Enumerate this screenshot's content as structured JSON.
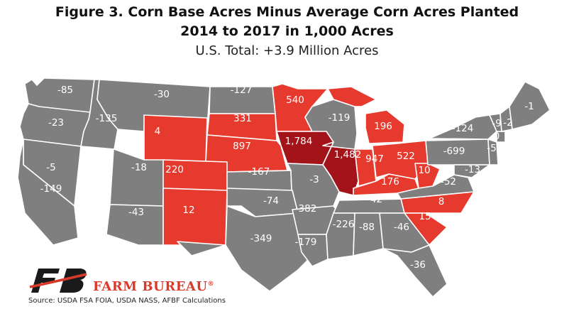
{
  "header": {
    "title_line1": "Figure 3. Corn Base Acres Minus Average Corn Acres Planted",
    "title_line2": "2014 to 2017 in 1,000 Acres",
    "subtitle": "U.S. Total: +3.9 Million Acres"
  },
  "colors": {
    "negative": "#7f7f7f",
    "positive": "#e63a2e",
    "high": "#a3141a",
    "border": "#ffffff"
  },
  "legend_scale": "gray = negative, red = positive, dark red = largest positive",
  "states": [
    {
      "id": "WA",
      "value": "-85",
      "cat": "neg"
    },
    {
      "id": "OR",
      "value": "-23",
      "cat": "neg"
    },
    {
      "id": "ID",
      "value": "-135",
      "cat": "neg"
    },
    {
      "id": "MT",
      "value": "-30",
      "cat": "neg"
    },
    {
      "id": "ND",
      "value": "-127",
      "cat": "neg"
    },
    {
      "id": "SD",
      "value": "331",
      "cat": "pos"
    },
    {
      "id": "WY",
      "value": "4",
      "cat": "pos"
    },
    {
      "id": "NE",
      "value": "897",
      "cat": "pos"
    },
    {
      "id": "MN",
      "value": "540",
      "cat": "pos"
    },
    {
      "id": "WI",
      "value": "-119",
      "cat": "neg"
    },
    {
      "id": "MI",
      "value": "196",
      "cat": "pos"
    },
    {
      "id": "IA",
      "value": "1,784",
      "cat": "high"
    },
    {
      "id": "IL",
      "value": "1,482",
      "cat": "high"
    },
    {
      "id": "IN",
      "value": "947",
      "cat": "pos"
    },
    {
      "id": "OH",
      "value": "522",
      "cat": "pos"
    },
    {
      "id": "NV",
      "value": "-5",
      "cat": "neg"
    },
    {
      "id": "UT",
      "value": "-18",
      "cat": "neg"
    },
    {
      "id": "CO",
      "value": "220",
      "cat": "pos"
    },
    {
      "id": "KS",
      "value": "-167",
      "cat": "neg"
    },
    {
      "id": "MO",
      "value": "-3",
      "cat": "neg"
    },
    {
      "id": "KY",
      "value": "176",
      "cat": "pos"
    },
    {
      "id": "WV",
      "value": "10",
      "cat": "pos"
    },
    {
      "id": "PA",
      "value": "-699",
      "cat": "neg"
    },
    {
      "id": "NY",
      "value": "-124",
      "cat": "neg"
    },
    {
      "id": "VA",
      "value": "-52",
      "cat": "neg"
    },
    {
      "id": "MD",
      "value": "-13",
      "cat": "neg"
    },
    {
      "id": "NJ",
      "value": "-5",
      "cat": "neg"
    },
    {
      "id": "CT",
      "value": "0",
      "cat": "neg"
    },
    {
      "id": "VT",
      "value": "-9",
      "cat": "neg"
    },
    {
      "id": "NH",
      "value": "-2",
      "cat": "neg"
    },
    {
      "id": "ME",
      "value": "-1",
      "cat": "neg"
    },
    {
      "id": "CA",
      "value": "-149",
      "cat": "neg"
    },
    {
      "id": "AZ",
      "value": "-43",
      "cat": "neg"
    },
    {
      "id": "NM",
      "value": "12",
      "cat": "pos"
    },
    {
      "id": "OK",
      "value": "-74",
      "cat": "neg"
    },
    {
      "id": "TX",
      "value": "-349",
      "cat": "neg"
    },
    {
      "id": "AR",
      "value": "-382",
      "cat": "neg"
    },
    {
      "id": "TN",
      "value": "-42",
      "cat": "neg"
    },
    {
      "id": "NC",
      "value": "8",
      "cat": "pos"
    },
    {
      "id": "SC",
      "value": "15",
      "cat": "pos"
    },
    {
      "id": "LA",
      "value": "-179",
      "cat": "neg"
    },
    {
      "id": "MS",
      "value": "-226",
      "cat": "neg"
    },
    {
      "id": "AL",
      "value": "-88",
      "cat": "neg"
    },
    {
      "id": "GA",
      "value": "-46",
      "cat": "neg"
    },
    {
      "id": "FL",
      "value": "-36",
      "cat": "neg"
    }
  ],
  "footer": {
    "brand": "FARM BUREAU",
    "brand_mark": "®",
    "logo_letters": "FB",
    "source": "Source: USDA FSA FOIA, USDA NASS, AFBF Calculations"
  }
}
